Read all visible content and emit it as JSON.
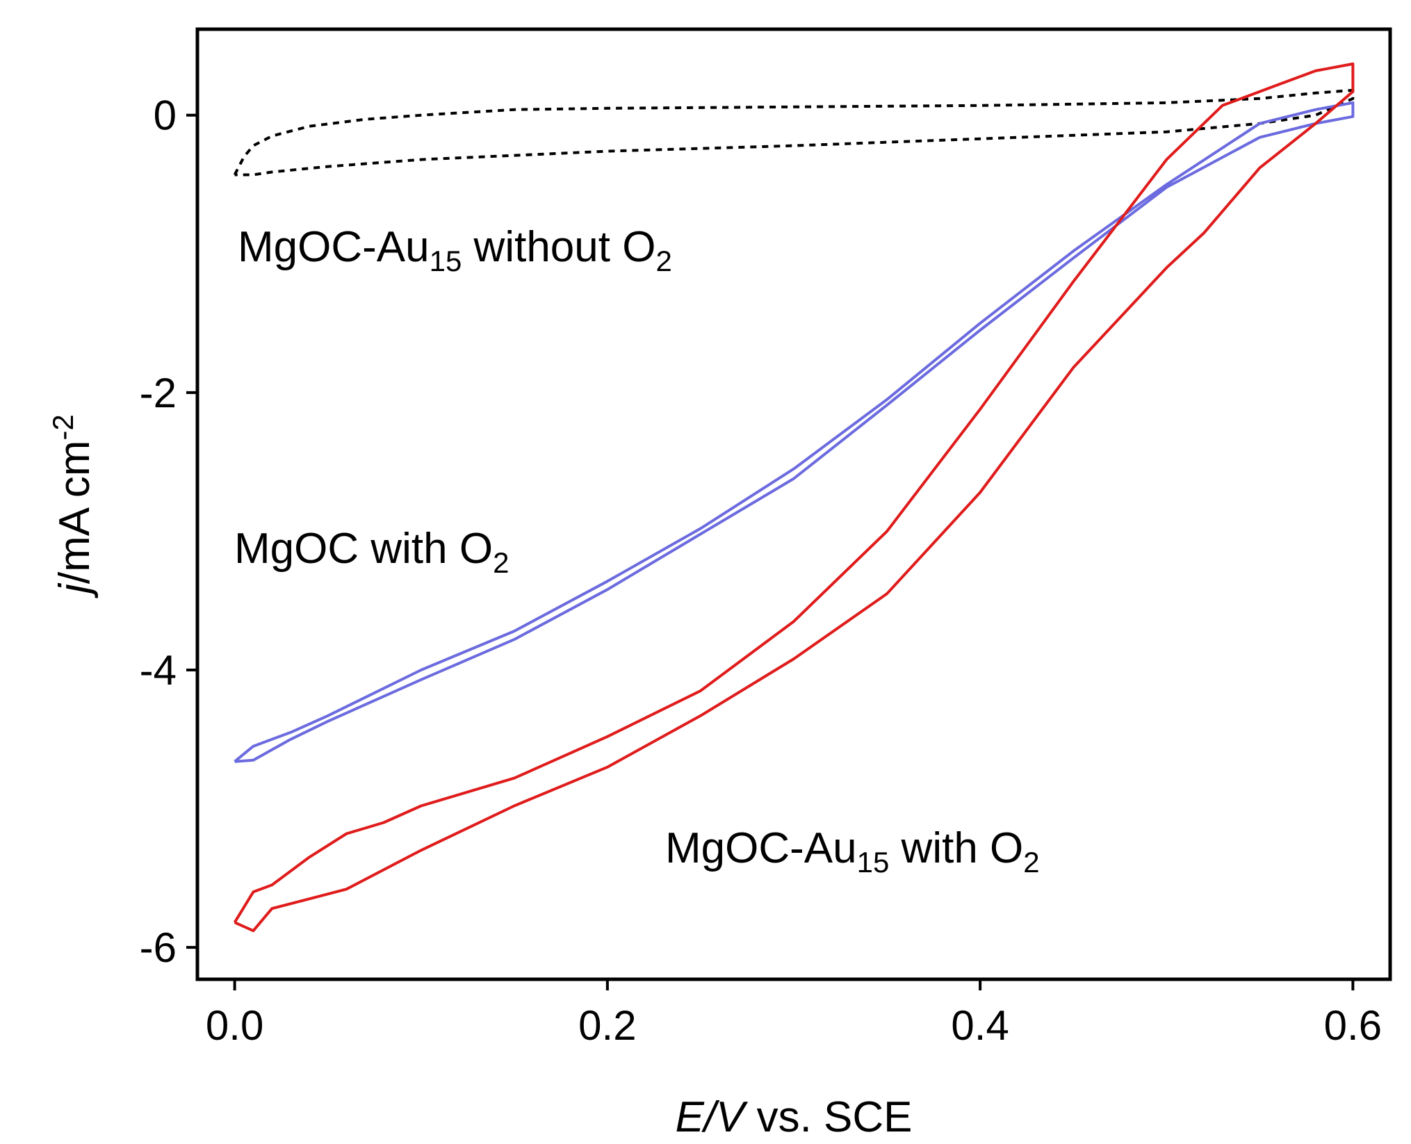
{
  "chart_data": {
    "type": "line",
    "title": "",
    "xlabel": {
      "italic": "E/V",
      "rest": " vs. SCE"
    },
    "ylabel": {
      "italic": "j",
      "rest": "/mA cm",
      "sup": "-2"
    },
    "xlim": [
      -0.02,
      0.62
    ],
    "ylim": [
      -6.23,
      0.62
    ],
    "x_ticks": [
      0.0,
      0.2,
      0.4,
      0.6
    ],
    "x_tick_labels": [
      "0.0",
      "0.2",
      "0.4",
      "0.6"
    ],
    "y_ticks": [
      0,
      -2,
      -4,
      -6
    ],
    "y_tick_labels": [
      "0",
      "-2",
      "-4",
      "-6"
    ],
    "grid": false,
    "legend": "none (inline annotations)",
    "series": [
      {
        "color": "#000000",
        "style": "dotted",
        "x": [
          0.0,
          0.005,
          0.01,
          0.02,
          0.04,
          0.07,
          0.1,
          0.15,
          0.2,
          0.3,
          0.4,
          0.5,
          0.55,
          0.58,
          0.6,
          0.6,
          0.58,
          0.55,
          0.5,
          0.4,
          0.3,
          0.2,
          0.1,
          0.05,
          0.02,
          0.01,
          0.0
        ],
        "y": [
          -0.43,
          -0.3,
          -0.22,
          -0.15,
          -0.08,
          -0.03,
          0.0,
          0.04,
          0.05,
          0.06,
          0.07,
          0.09,
          0.12,
          0.16,
          0.18,
          0.12,
          0.0,
          -0.06,
          -0.12,
          -0.17,
          -0.22,
          -0.26,
          -0.32,
          -0.37,
          -0.41,
          -0.43,
          -0.43
        ]
      },
      {
        "color": "#6b6bdf",
        "style": "solid",
        "x": [
          0.0,
          0.01,
          0.03,
          0.05,
          0.1,
          0.15,
          0.2,
          0.25,
          0.3,
          0.35,
          0.4,
          0.45,
          0.5,
          0.55,
          0.58,
          0.6,
          0.6,
          0.58,
          0.55,
          0.5,
          0.45,
          0.4,
          0.35,
          0.3,
          0.25,
          0.2,
          0.15,
          0.1,
          0.05,
          0.03,
          0.01,
          0.0
        ],
        "y": [
          -4.66,
          -4.55,
          -4.45,
          -4.33,
          -4.0,
          -3.72,
          -3.36,
          -2.98,
          -2.55,
          -2.05,
          -1.5,
          -0.98,
          -0.5,
          -0.06,
          0.04,
          0.09,
          -0.01,
          -0.06,
          -0.16,
          -0.52,
          -1.03,
          -1.55,
          -2.09,
          -2.62,
          -3.02,
          -3.42,
          -3.78,
          -4.07,
          -4.37,
          -4.5,
          -4.65,
          -4.66
        ]
      },
      {
        "color": "#e01b1b",
        "style": "solid",
        "x": [
          0.0,
          0.01,
          0.02,
          0.04,
          0.06,
          0.08,
          0.1,
          0.15,
          0.2,
          0.25,
          0.3,
          0.35,
          0.4,
          0.45,
          0.5,
          0.53,
          0.56,
          0.58,
          0.6,
          0.6,
          0.58,
          0.55,
          0.52,
          0.5,
          0.45,
          0.4,
          0.35,
          0.3,
          0.25,
          0.2,
          0.15,
          0.1,
          0.06,
          0.04,
          0.02,
          0.01,
          0.0
        ],
        "y": [
          -5.82,
          -5.6,
          -5.55,
          -5.35,
          -5.18,
          -5.1,
          -4.98,
          -4.78,
          -4.48,
          -4.15,
          -3.65,
          -3.0,
          -2.12,
          -1.2,
          -0.32,
          0.07,
          0.22,
          0.32,
          0.37,
          0.17,
          -0.06,
          -0.38,
          -0.85,
          -1.1,
          -1.82,
          -2.72,
          -3.45,
          -3.92,
          -4.33,
          -4.7,
          -4.98,
          -5.3,
          -5.58,
          -5.65,
          -5.72,
          -5.88,
          -5.82
        ]
      }
    ],
    "annotations": [
      {
        "parts": [
          {
            "t": "MgOC-Au"
          },
          {
            "t": "15",
            "sub": true
          },
          {
            "t": " without O"
          },
          {
            "t": "2",
            "sub": true
          }
        ]
      },
      {
        "parts": [
          {
            "t": "MgOC with O"
          },
          {
            "t": "2",
            "sub": true
          }
        ]
      },
      {
        "parts": [
          {
            "t": "MgOC-Au"
          },
          {
            "t": "15",
            "sub": true
          },
          {
            "t": " with O"
          },
          {
            "t": "2",
            "sub": true
          }
        ]
      }
    ]
  }
}
